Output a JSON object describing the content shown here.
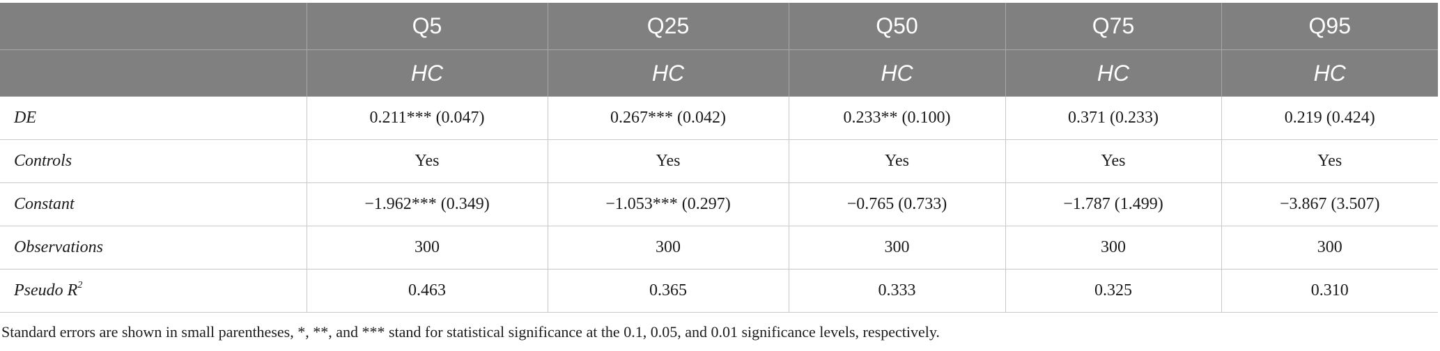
{
  "header": {
    "columns": [
      "Q5",
      "Q25",
      "Q50",
      "Q75",
      "Q95"
    ],
    "dependent_var": [
      "HC",
      "HC",
      "HC",
      "HC",
      "HC"
    ]
  },
  "rows": [
    {
      "label": "DE",
      "cells": [
        "0.211*** (0.047)",
        "0.267*** (0.042)",
        "0.233** (0.100)",
        "0.371 (0.233)",
        "0.219 (0.424)"
      ]
    },
    {
      "label": "Controls",
      "cells": [
        "Yes",
        "Yes",
        "Yes",
        "Yes",
        "Yes"
      ]
    },
    {
      "label": "Constant",
      "cells": [
        "−1.962*** (0.349)",
        "−1.053*** (0.297)",
        "−0.765 (0.733)",
        "−1.787 (1.499)",
        "−3.867 (3.507)"
      ]
    },
    {
      "label": "Observations",
      "cells": [
        "300",
        "300",
        "300",
        "300",
        "300"
      ]
    },
    {
      "label": "Pseudo R",
      "label_sup": "2",
      "cells": [
        "0.463",
        "0.365",
        "0.333",
        "0.325",
        "0.310"
      ]
    }
  ],
  "footnote": "Standard errors are shown in small parentheses, *, **, and *** stand for statistical significance at the 0.1, 0.05, and 0.01 significance levels, respectively.",
  "colors": {
    "header_bg": "#808080",
    "header_text": "#ffffff",
    "grid": "#c8c8c8"
  }
}
